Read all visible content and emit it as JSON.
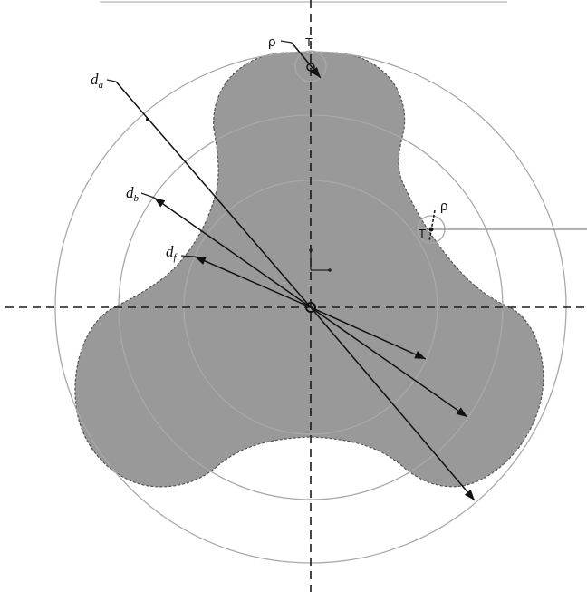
{
  "labels": {
    "da": "d",
    "da_sub": "a",
    "db": "d",
    "db_sub": "b",
    "df": "d",
    "df_sub": "f",
    "rho_top": "ρ",
    "t_top": "T",
    "rho_right": "ρ",
    "t_right": "T"
  },
  "colors": {
    "profile_fill": "#999999",
    "profile_edge": "#555555",
    "circle_stroke": "#a9a9a9",
    "line": "#111111"
  }
}
